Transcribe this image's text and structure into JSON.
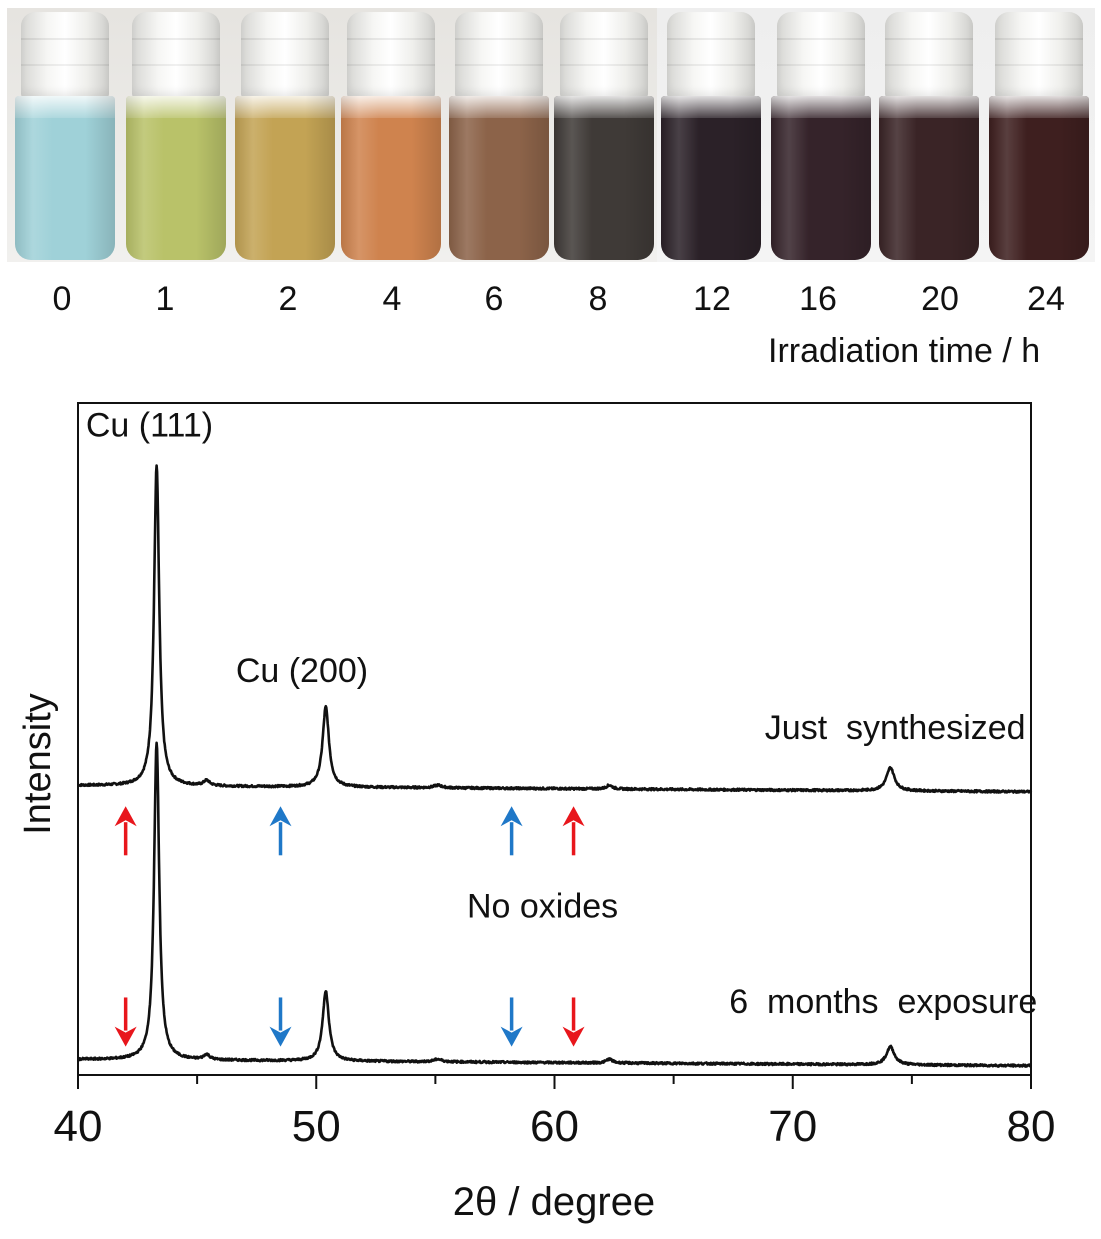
{
  "photo": {
    "vials": [
      {
        "time": "0",
        "color": "#9fd1d8"
      },
      {
        "time": "1",
        "color": "#b9c269"
      },
      {
        "time": "2",
        "color": "#c3a354"
      },
      {
        "time": "4",
        "color": "#cf834e"
      },
      {
        "time": "6",
        "color": "#8c6349"
      },
      {
        "time": "8",
        "color": "#3f3a37"
      },
      {
        "time": "12",
        "color": "#2b2128"
      },
      {
        "time": "16",
        "color": "#35232a"
      },
      {
        "time": "20",
        "color": "#3a2426"
      },
      {
        "time": "24",
        "color": "#3e1f1f"
      }
    ],
    "axis_label": "Irradiation time / h"
  },
  "chart_data": {
    "type": "line",
    "xlabel": "2θ / degree",
    "ylabel": "Intensity",
    "xlim": [
      40,
      80
    ],
    "ylim": [
      0,
      2.6
    ],
    "xticks": [
      40,
      50,
      60,
      70,
      80
    ],
    "xticks_minor": [
      45,
      55,
      65,
      75
    ],
    "grid": false,
    "series": [
      {
        "name": "Just synthesized",
        "offset": 1.12,
        "peaks": [
          {
            "x": 43.3,
            "height": 1.24,
            "width": 0.13
          },
          {
            "x": 50.4,
            "height": 0.31,
            "width": 0.16
          },
          {
            "x": 45.4,
            "height": 0.02,
            "width": 0.15
          },
          {
            "x": 55.1,
            "height": 0.01,
            "width": 0.2
          },
          {
            "x": 62.3,
            "height": 0.015,
            "width": 0.15
          },
          {
            "x": 74.1,
            "height": 0.09,
            "width": 0.2
          }
        ]
      },
      {
        "name": "6 months exposure",
        "offset": 0.06,
        "peaks": [
          {
            "x": 43.3,
            "height": 1.23,
            "width": 0.13
          },
          {
            "x": 50.4,
            "height": 0.27,
            "width": 0.16
          },
          {
            "x": 45.4,
            "height": 0.02,
            "width": 0.15
          },
          {
            "x": 55.1,
            "height": 0.01,
            "width": 0.2
          },
          {
            "x": 62.3,
            "height": 0.015,
            "width": 0.15
          },
          {
            "x": 74.1,
            "height": 0.07,
            "width": 0.2
          }
        ]
      }
    ],
    "annotations": [
      {
        "text": "Cu (111)",
        "x": 43.0,
        "y": 2.47
      },
      {
        "text": "Cu (200)",
        "x": 49.4,
        "y": 1.52
      },
      {
        "text": "Just  synthesized",
        "x": 74.3,
        "y": 1.3
      },
      {
        "text": "No oxides",
        "x": 59.5,
        "y": 0.61
      },
      {
        "text": "6  months  exposure",
        "x": 73.8,
        "y": 0.24
      }
    ],
    "arrows": [
      {
        "x": 42.0,
        "color": "#e8161c"
      },
      {
        "x": 48.5,
        "color": "#1f78c8"
      },
      {
        "x": 58.2,
        "color": "#1f78c8"
      },
      {
        "x": 60.8,
        "color": "#e8161c"
      }
    ],
    "arrow_y_ranges": {
      "up": [
        0.85,
        1.04
      ],
      "down": [
        0.11,
        0.3
      ]
    }
  }
}
